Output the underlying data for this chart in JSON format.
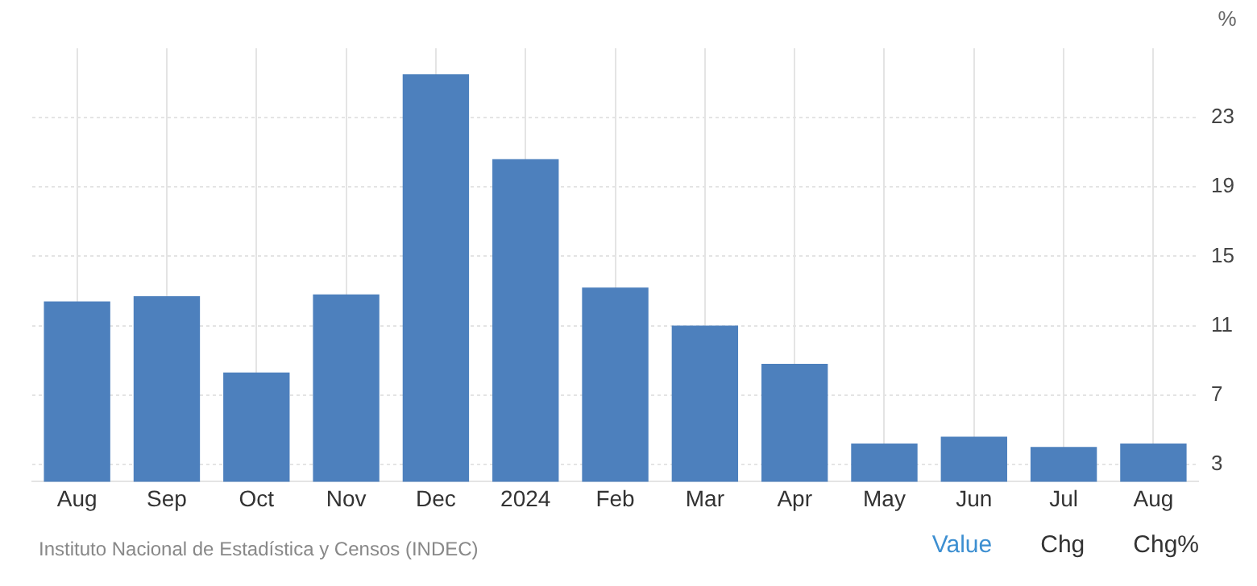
{
  "chart_data": {
    "type": "bar",
    "ylabel": "%",
    "categories": [
      "Aug",
      "Sep",
      "Oct",
      "Nov",
      "Dec",
      "2024",
      "Feb",
      "Mar",
      "Apr",
      "May",
      "Jun",
      "Jul",
      "Aug"
    ],
    "values": [
      12.4,
      12.7,
      8.3,
      12.8,
      25.5,
      20.6,
      13.2,
      11.0,
      8.8,
      4.2,
      4.6,
      4.0,
      4.2
    ],
    "color": "#4d80bd",
    "ylim": [
      2,
      27
    ],
    "yticks": [
      3,
      7,
      11,
      15,
      19,
      23
    ],
    "grid": true,
    "legend": false,
    "annotations": [
      "Instituto Nacional de Estadística y Censos (INDEC)",
      "Value",
      "Chg",
      "Chg%"
    ]
  }
}
